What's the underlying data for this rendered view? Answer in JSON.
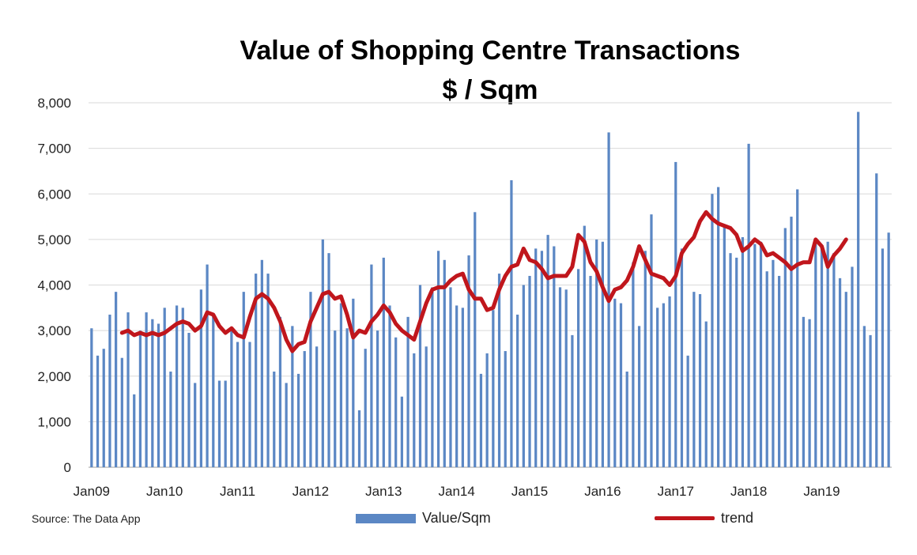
{
  "chart_data": {
    "type": "bar",
    "title": "Value of Shopping Centre Transactions",
    "subtitle": "$ / Sqm",
    "source": "Source: The Data App",
    "ylim": [
      0,
      8000
    ],
    "yticks": [
      "0",
      "1,000",
      "2,000",
      "3,000",
      "4,000",
      "5,000",
      "6,000",
      "7,000",
      "8,000"
    ],
    "xtick_labels": [
      "Jan09",
      "Jan10",
      "Jan11",
      "Jan12",
      "Jan13",
      "Jan14",
      "Jan15",
      "Jan16",
      "Jan17",
      "Jan18",
      "Jan19"
    ],
    "grid": true,
    "legend_position": "bottom",
    "colors": {
      "bars": "#5b87c4",
      "trend": "#c0161c"
    },
    "series": [
      {
        "name": "Value/Sqm",
        "type": "bar",
        "start": "2009-01",
        "values": [
          3050,
          2450,
          2600,
          3350,
          3850,
          2400,
          3400,
          1600,
          3000,
          3400,
          3250,
          3150,
          3500,
          2100,
          3550,
          3500,
          2950,
          1850,
          3900,
          4450,
          3350,
          1900,
          1900,
          3000,
          2750,
          3850,
          2750,
          4250,
          4550,
          4250,
          2100,
          3300,
          1850,
          3100,
          2050,
          2550,
          3850,
          2650,
          5000,
          4700,
          3000,
          3600,
          3050,
          3700,
          1250,
          2600,
          4450,
          3000,
          4600,
          3550,
          2850,
          1550,
          3300,
          2500,
          4000,
          2650,
          3950,
          4750,
          4550,
          3950,
          3550,
          3500,
          4650,
          5600,
          2050,
          2500,
          3450,
          4250,
          2550,
          6300,
          3350,
          4000,
          4200,
          4800,
          4750,
          5100,
          4850,
          3950,
          3900,
          2900,
          4350,
          5300,
          4200,
          5000,
          4950,
          7350,
          3700,
          3600,
          2100,
          4500,
          3100,
          4750,
          5550,
          3500,
          3600,
          3750,
          6700,
          4800,
          2450,
          3850,
          3800,
          3200,
          6000,
          6150,
          5300,
          4700,
          4600,
          5050,
          7100,
          4900,
          4950,
          4300,
          4550,
          4200,
          5250,
          5500,
          6100,
          3300,
          3250,
          4900,
          4850,
          4950,
          4700,
          4150,
          3850,
          4400,
          7800,
          3100,
          2900,
          6450,
          4800,
          5150
        ]
      },
      {
        "name": "trend",
        "type": "line",
        "start": "2009-06",
        "values": [
          2950,
          3000,
          2900,
          2950,
          2900,
          2950,
          2900,
          2950,
          3050,
          3150,
          3200,
          3150,
          3000,
          3100,
          3400,
          3350,
          3100,
          2950,
          3050,
          2900,
          2850,
          3300,
          3700,
          3800,
          3700,
          3500,
          3200,
          2800,
          2550,
          2700,
          2750,
          3200,
          3500,
          3800,
          3850,
          3700,
          3750,
          3350,
          2850,
          3000,
          2950,
          3200,
          3350,
          3550,
          3400,
          3150,
          3000,
          2900,
          2800,
          3200,
          3600,
          3900,
          3950,
          3950,
          4100,
          4200,
          4250,
          3900,
          3700,
          3700,
          3450,
          3500,
          3900,
          4200,
          4400,
          4450,
          4800,
          4550,
          4500,
          4350,
          4150,
          4200,
          4200,
          4200,
          4400,
          5100,
          4950,
          4500,
          4300,
          3950,
          3650,
          3900,
          3950,
          4100,
          4400,
          4850,
          4550,
          4250,
          4200,
          4150,
          4000,
          4200,
          4700,
          4900,
          5050,
          5400,
          5600,
          5450,
          5350,
          5300,
          5250,
          5100,
          4750,
          4850,
          5000,
          4900,
          4650,
          4700,
          4600,
          4500,
          4350,
          4450,
          4500,
          4500,
          5000,
          4850,
          4400,
          4650,
          4800,
          5000
        ]
      }
    ]
  }
}
